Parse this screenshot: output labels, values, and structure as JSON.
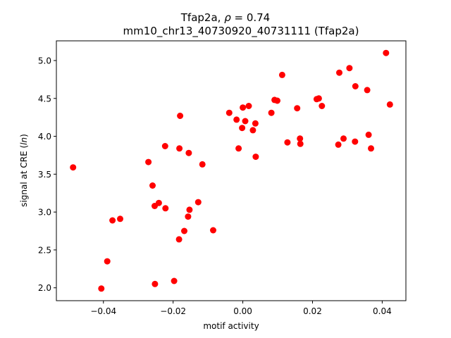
{
  "chart_data": {
    "type": "scatter",
    "title_main": "Tfap2a, ",
    "title_rho_symbol": "ρ",
    "title_rho_value": " = 0.74",
    "subtitle": "mm10_chr13_40730920_40731111 (Tfap2a)",
    "xlabel": "motif activity",
    "ylabel_prefix": "signal at CRE (",
    "ylabel_italic": "ln",
    "ylabel_suffix": ")",
    "xlim": [
      -0.0535,
      0.0468
    ],
    "ylim": [
      1.83,
      5.26
    ],
    "xticks": [
      -0.04,
      -0.02,
      0.0,
      0.02,
      0.04
    ],
    "xtick_labels": [
      "−0.04",
      "−0.02",
      "0.00",
      "0.02",
      "0.04"
    ],
    "yticks": [
      2.0,
      2.5,
      3.0,
      3.5,
      4.0,
      4.5,
      5.0
    ],
    "ytick_labels": [
      "2.0",
      "2.5",
      "3.0",
      "3.5",
      "4.0",
      "4.5",
      "5.0"
    ],
    "grid": false,
    "marker_color": "#ff0000",
    "points": [
      {
        "x": -0.0487,
        "y": 3.59
      },
      {
        "x": -0.0406,
        "y": 1.99
      },
      {
        "x": -0.0389,
        "y": 2.35
      },
      {
        "x": -0.0374,
        "y": 2.89
      },
      {
        "x": -0.0352,
        "y": 2.91
      },
      {
        "x": -0.0271,
        "y": 3.66
      },
      {
        "x": -0.0259,
        "y": 3.35
      },
      {
        "x": -0.0253,
        "y": 3.08
      },
      {
        "x": -0.0252,
        "y": 2.05
      },
      {
        "x": -0.0241,
        "y": 3.12
      },
      {
        "x": -0.0223,
        "y": 3.87
      },
      {
        "x": -0.0222,
        "y": 3.05
      },
      {
        "x": -0.0197,
        "y": 2.09
      },
      {
        "x": -0.0183,
        "y": 2.64
      },
      {
        "x": -0.0182,
        "y": 3.84
      },
      {
        "x": -0.018,
        "y": 4.27
      },
      {
        "x": -0.0168,
        "y": 2.75
      },
      {
        "x": -0.0157,
        "y": 2.94
      },
      {
        "x": -0.0155,
        "y": 3.78
      },
      {
        "x": -0.0153,
        "y": 3.03
      },
      {
        "x": -0.0128,
        "y": 3.13
      },
      {
        "x": -0.0116,
        "y": 3.63
      },
      {
        "x": -0.0085,
        "y": 2.76
      },
      {
        "x": -0.0039,
        "y": 4.31
      },
      {
        "x": -0.0018,
        "y": 4.22
      },
      {
        "x": -0.0012,
        "y": 3.84
      },
      {
        "x": 0.0,
        "y": 4.38
      },
      {
        "x": -0.0002,
        "y": 4.11
      },
      {
        "x": 0.0007,
        "y": 4.2
      },
      {
        "x": 0.0017,
        "y": 4.4
      },
      {
        "x": 0.0029,
        "y": 4.08
      },
      {
        "x": 0.0036,
        "y": 4.17
      },
      {
        "x": 0.0037,
        "y": 3.73
      },
      {
        "x": 0.0082,
        "y": 4.31
      },
      {
        "x": 0.0091,
        "y": 4.48
      },
      {
        "x": 0.0099,
        "y": 4.47
      },
      {
        "x": 0.0113,
        "y": 4.81
      },
      {
        "x": 0.0128,
        "y": 3.92
      },
      {
        "x": 0.0156,
        "y": 4.37
      },
      {
        "x": 0.0164,
        "y": 3.97
      },
      {
        "x": 0.0165,
        "y": 3.9
      },
      {
        "x": 0.0212,
        "y": 4.49
      },
      {
        "x": 0.0218,
        "y": 4.5
      },
      {
        "x": 0.0227,
        "y": 4.4
      },
      {
        "x": 0.0274,
        "y": 3.89
      },
      {
        "x": 0.0277,
        "y": 4.84
      },
      {
        "x": 0.0289,
        "y": 3.97
      },
      {
        "x": 0.0306,
        "y": 4.9
      },
      {
        "x": 0.0322,
        "y": 3.93
      },
      {
        "x": 0.0323,
        "y": 4.66
      },
      {
        "x": 0.0357,
        "y": 4.61
      },
      {
        "x": 0.0361,
        "y": 4.02
      },
      {
        "x": 0.0368,
        "y": 3.84
      },
      {
        "x": 0.0411,
        "y": 5.1
      },
      {
        "x": 0.0422,
        "y": 4.42
      }
    ]
  }
}
